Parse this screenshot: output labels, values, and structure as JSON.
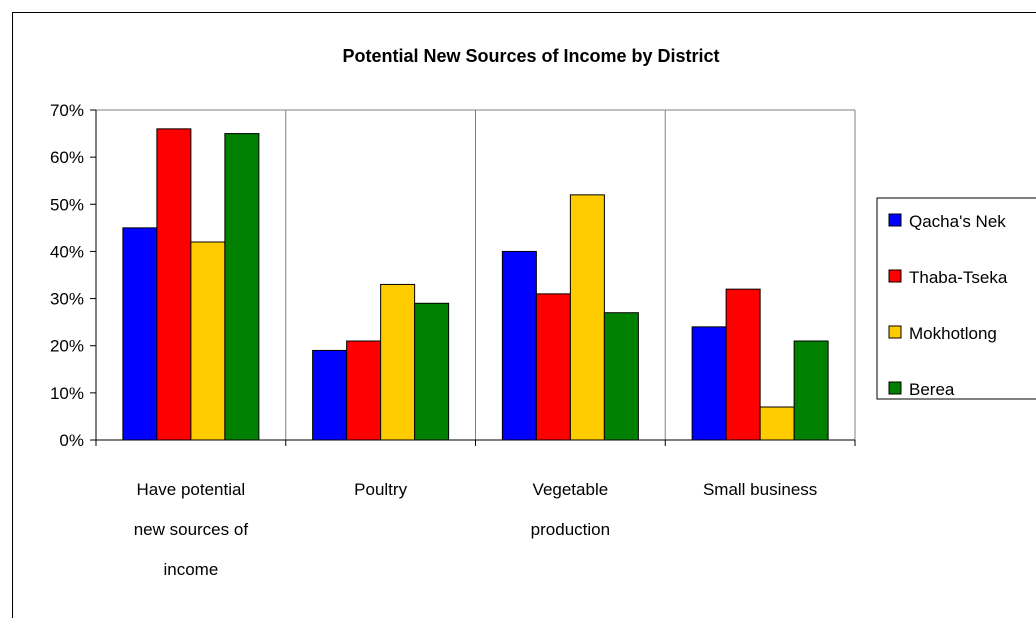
{
  "chart_data": {
    "type": "bar",
    "title": "Potential New Sources of Income by District",
    "xlabel": "",
    "ylabel": "",
    "ylim": [
      0,
      70
    ],
    "yticks": [
      "0%",
      "10%",
      "20%",
      "30%",
      "40%",
      "50%",
      "60%",
      "70%"
    ],
    "grid": "vertical category separators",
    "legend_position": "right",
    "categories": [
      [
        "Have potential",
        "new sources of",
        "income"
      ],
      [
        "Poultry"
      ],
      [
        "Vegetable",
        "production"
      ],
      [
        "Small business"
      ]
    ],
    "series": [
      {
        "name": "Qacha's Nek",
        "color": "#0000ff",
        "values": [
          45,
          19,
          40,
          24
        ]
      },
      {
        "name": "Thaba-Tseka",
        "color": "#ff0000",
        "values": [
          66,
          21,
          31,
          32
        ]
      },
      {
        "name": "Mokhotlong",
        "color": "#ffcc00",
        "values": [
          42,
          33,
          52,
          7
        ]
      },
      {
        "name": "Berea",
        "color": "#008000",
        "values": [
          65,
          29,
          27,
          21
        ]
      }
    ]
  }
}
